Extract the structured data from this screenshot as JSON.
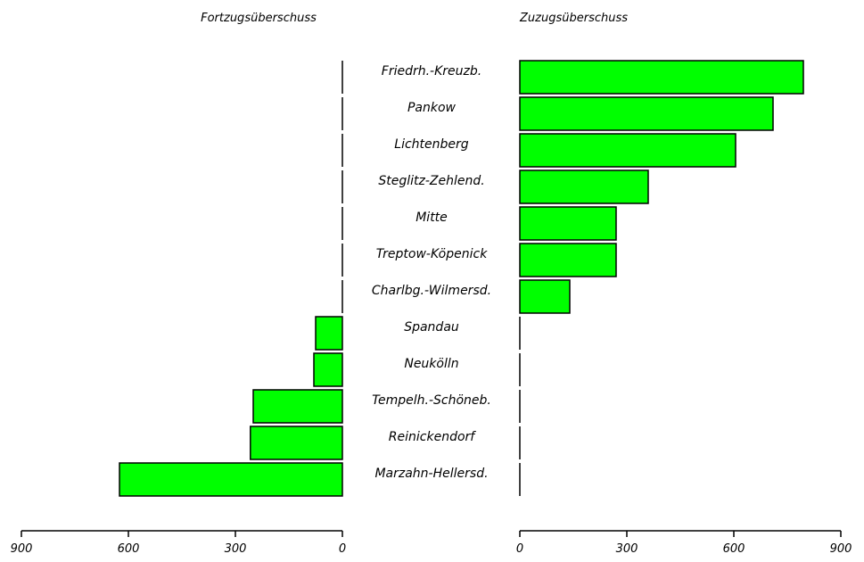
{
  "chart_data": {
    "type": "bar",
    "orientation": "horizontal-butterfly",
    "bar_color": "#00ff00",
    "left_title": "Fortzugsüberschuss",
    "right_title": "Zuzugsüberschuss",
    "categories": [
      "Friedrh.-Kreuzb.",
      "Pankow",
      "Lichtenberg",
      "Steglitz-Zehlend.",
      "Mitte",
      "Treptow-Köpenick",
      "Charlbg.-Wilmersd.",
      "Spandau",
      "Neukölln",
      "Tempelh.-Schöneb.",
      "Reinickendorf",
      "Marzahn-Hellersd."
    ],
    "series": [
      {
        "name": "Fortzugsüberschuss",
        "values": [
          0,
          0,
          0,
          0,
          0,
          0,
          0,
          75,
          80,
          250,
          258,
          625
        ]
      },
      {
        "name": "Zuzugsüberschuss",
        "values": [
          795,
          710,
          605,
          360,
          270,
          270,
          140,
          0,
          0,
          0,
          0,
          0
        ]
      }
    ],
    "left_axis": {
      "range": [
        900,
        0
      ],
      "ticks": [
        900,
        600,
        300,
        0
      ]
    },
    "right_axis": {
      "range": [
        0,
        900
      ],
      "ticks": [
        0,
        300,
        600,
        900
      ]
    },
    "grid": false,
    "legend": "none"
  }
}
